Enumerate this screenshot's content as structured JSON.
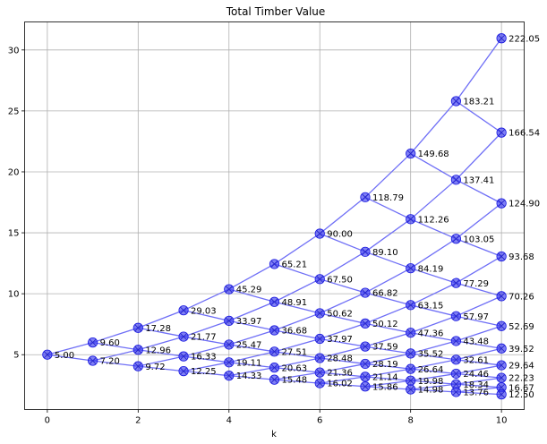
{
  "chart_data": {
    "type": "scatter",
    "title": "Total Timber Value",
    "xlabel": "k",
    "ylabel": "",
    "xlim": [
      -0.5,
      10.5
    ],
    "ylim": [
      0.5,
      32.3
    ],
    "xticks": [
      0,
      2,
      4,
      6,
      8,
      10
    ],
    "yticks": [
      5,
      10,
      15,
      20,
      25,
      30
    ],
    "grid": true,
    "marker": "circle with x",
    "line_color": "#6e6ef6",
    "marker_color": "#3c3cf0",
    "nodes": [
      [
        {
          "y": 5.0,
          "label": "5.00"
        }
      ],
      [
        {
          "y": 6.0,
          "label": "9.60"
        },
        {
          "y": 4.5,
          "label": "7.20"
        }
      ],
      [
        {
          "y": 7.2,
          "label": "17.28"
        },
        {
          "y": 5.4,
          "label": "12.96"
        },
        {
          "y": 4.05,
          "label": "9.72"
        }
      ],
      [
        {
          "y": 8.64,
          "label": "29.03"
        },
        {
          "y": 6.48,
          "label": "21.77"
        },
        {
          "y": 4.86,
          "label": "16.33"
        },
        {
          "y": 3.65,
          "label": "12.25"
        }
      ],
      [
        {
          "y": 10.37,
          "label": "45.29"
        },
        {
          "y": 7.78,
          "label": "33.97"
        },
        {
          "y": 5.83,
          "label": "25.47"
        },
        {
          "y": 4.37,
          "label": "19.11"
        },
        {
          "y": 3.28,
          "label": "14.33"
        }
      ],
      [
        {
          "y": 12.44,
          "label": "65.21"
        },
        {
          "y": 9.33,
          "label": "48.91"
        },
        {
          "y": 7.0,
          "label": "36.68"
        },
        {
          "y": 5.25,
          "label": "27.51"
        },
        {
          "y": 3.94,
          "label": "20.63"
        },
        {
          "y": 2.95,
          "label": "15.48"
        }
      ],
      [
        {
          "y": 14.93,
          "label": "90.00"
        },
        {
          "y": 11.2,
          "label": "67.50"
        },
        {
          "y": 8.4,
          "label": "50.62"
        },
        {
          "y": 6.3,
          "label": "37.97"
        },
        {
          "y": 4.72,
          "label": "28.48"
        },
        {
          "y": 3.54,
          "label": "21.36"
        },
        {
          "y": 2.66,
          "label": "16.02"
        }
      ],
      [
        {
          "y": 17.92,
          "label": "118.79"
        },
        {
          "y": 13.44,
          "label": "89.10"
        },
        {
          "y": 10.08,
          "label": "66.82"
        },
        {
          "y": 7.56,
          "label": "50.12"
        },
        {
          "y": 5.67,
          "label": "37.59"
        },
        {
          "y": 4.25,
          "label": "28.19"
        },
        {
          "y": 3.19,
          "label": "21.14"
        },
        {
          "y": 2.39,
          "label": "15.86"
        }
      ],
      [
        {
          "y": 21.5,
          "label": "149.68"
        },
        {
          "y": 16.12,
          "label": "112.26"
        },
        {
          "y": 12.09,
          "label": "84.19"
        },
        {
          "y": 9.07,
          "label": "63.15"
        },
        {
          "y": 6.8,
          "label": "47.36"
        },
        {
          "y": 5.1,
          "label": "35.52"
        },
        {
          "y": 3.83,
          "label": "26.64"
        },
        {
          "y": 2.87,
          "label": "19.98"
        },
        {
          "y": 2.15,
          "label": "14.98"
        }
      ],
      [
        {
          "y": 25.8,
          "label": "183.21"
        },
        {
          "y": 19.35,
          "label": "137.41"
        },
        {
          "y": 14.51,
          "label": "103.05"
        },
        {
          "y": 10.88,
          "label": "77.29"
        },
        {
          "y": 8.16,
          "label": "57.97"
        },
        {
          "y": 6.12,
          "label": "43.48"
        },
        {
          "y": 4.59,
          "label": "32.61"
        },
        {
          "y": 3.44,
          "label": "24.46"
        },
        {
          "y": 2.58,
          "label": "18.34"
        },
        {
          "y": 1.94,
          "label": "13.76"
        }
      ],
      [
        {
          "y": 30.96,
          "label": "222.05"
        },
        {
          "y": 23.22,
          "label": "166.54"
        },
        {
          "y": 17.42,
          "label": "124.90"
        },
        {
          "y": 13.06,
          "label": "93.68"
        },
        {
          "y": 9.8,
          "label": "70.26"
        },
        {
          "y": 7.35,
          "label": "52.69"
        },
        {
          "y": 5.51,
          "label": "39.52"
        },
        {
          "y": 4.13,
          "label": "29.64"
        },
        {
          "y": 3.1,
          "label": "22.23"
        },
        {
          "y": 2.32,
          "label": "16.67"
        },
        {
          "y": 1.74,
          "label": "12.50"
        }
      ]
    ]
  }
}
